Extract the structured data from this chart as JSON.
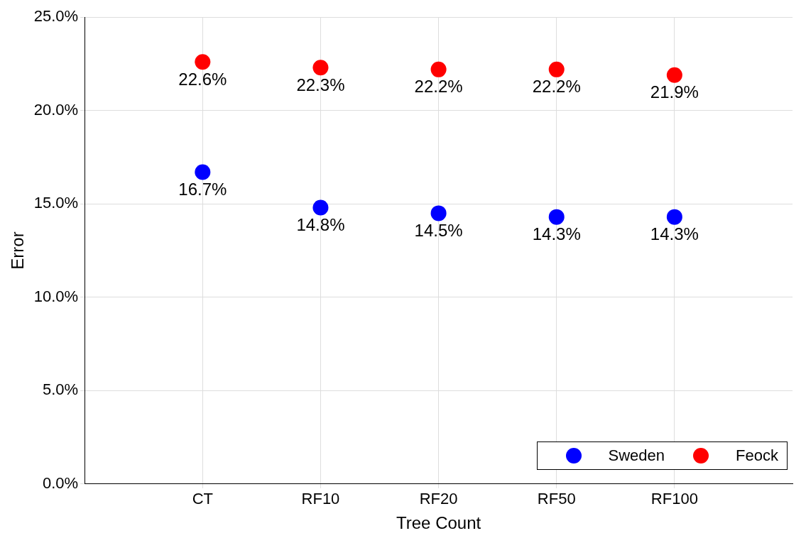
{
  "chart_data": {
    "type": "scatter",
    "xlabel": "Tree Count",
    "ylabel": "Error",
    "categories": [
      "CT",
      "RF10",
      "RF20",
      "RF50",
      "RF100"
    ],
    "series": [
      {
        "name": "Sweden",
        "color": "#0000ff",
        "values": [
          16.7,
          14.8,
          14.5,
          14.3,
          14.3
        ],
        "value_labels": [
          "16.7%",
          "14.8%",
          "14.5%",
          "14.3%",
          "14.3%"
        ]
      },
      {
        "name": "Feock",
        "color": "#ff0000",
        "values": [
          22.6,
          22.3,
          22.2,
          22.2,
          21.9
        ],
        "value_labels": [
          "22.6%",
          "22.3%",
          "22.2%",
          "22.2%",
          "21.9%"
        ]
      }
    ],
    "ylim": [
      0,
      25
    ],
    "yticks": [
      {
        "value": 0,
        "label": "0.0%"
      },
      {
        "value": 5,
        "label": "5.0%"
      },
      {
        "value": 10,
        "label": "10.0%"
      },
      {
        "value": 15,
        "label": "15.0%"
      },
      {
        "value": 20,
        "label": "20.0%"
      },
      {
        "value": 25,
        "label": "25.0%"
      }
    ],
    "grid": true,
    "legend": "bottom right",
    "marker": "circle"
  }
}
